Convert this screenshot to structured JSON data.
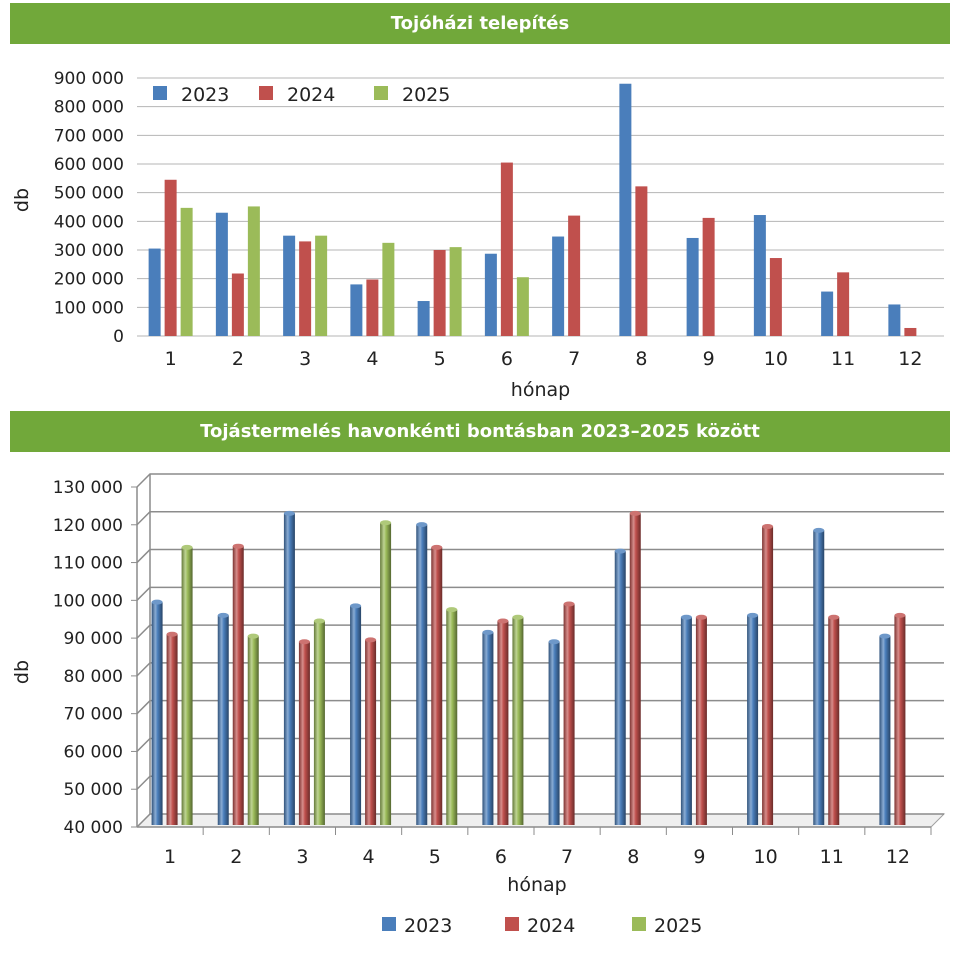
{
  "chart_data": [
    {
      "type": "bar",
      "title": "Tojóházi telepítés",
      "xlabel": "hónap",
      "ylabel": "db",
      "categories": [
        "1",
        "2",
        "3",
        "4",
        "5",
        "6",
        "7",
        "8",
        "9",
        "10",
        "11",
        "12"
      ],
      "ylim": [
        0,
        900000
      ],
      "yticks": [
        "0",
        "100 000",
        "200 000",
        "300 000",
        "400 000",
        "500 000",
        "600 000",
        "700 000",
        "800 000",
        "900 000"
      ],
      "legend_position": "top-left",
      "grid": true,
      "series": [
        {
          "name": "2023",
          "color": "#4a7ebb",
          "values": [
            305000,
            430000,
            350000,
            180000,
            122000,
            287000,
            347000,
            880000,
            342000,
            422000,
            155000,
            110000
          ]
        },
        {
          "name": "2024",
          "color": "#c0504d",
          "values": [
            545000,
            218000,
            330000,
            197000,
            300000,
            605000,
            420000,
            522000,
            412000,
            272000,
            222000,
            28000
          ]
        },
        {
          "name": "2025",
          "color": "#9bbb59",
          "values": [
            447000,
            452000,
            350000,
            325000,
            310000,
            205000,
            null,
            null,
            null,
            null,
            null,
            null
          ]
        }
      ]
    },
    {
      "type": "bar",
      "title": "Tojástermelés havonkénti bontásban 2023–2025 között",
      "xlabel": "hónap",
      "ylabel": "db",
      "categories": [
        "1",
        "2",
        "3",
        "4",
        "5",
        "6",
        "7",
        "8",
        "9",
        "10",
        "11",
        "12"
      ],
      "ylim": [
        40000,
        130000
      ],
      "yticks": [
        "40 000",
        "50 000",
        "60 000",
        "70 000",
        "80 000",
        "90 000",
        "100 000",
        "110 000",
        "120 000",
        "130 000"
      ],
      "legend_position": "bottom",
      "grid": true,
      "style": "3d-cylinder",
      "series": [
        {
          "name": "2023",
          "color": "#4a7ebb",
          "values": [
            99000,
            95500,
            122500,
            98000,
            119500,
            91000,
            88500,
            112500,
            95000,
            95500,
            118000,
            90000
          ]
        },
        {
          "name": "2024",
          "color": "#c0504d",
          "values": [
            90500,
            113800,
            88500,
            89000,
            113500,
            94000,
            98500,
            122500,
            95000,
            119000,
            95000,
            95500
          ]
        },
        {
          "name": "2025",
          "color": "#9bbb59",
          "values": [
            113500,
            90000,
            94000,
            120000,
            97000,
            95000,
            null,
            null,
            null,
            null,
            null,
            null
          ]
        }
      ]
    }
  ]
}
